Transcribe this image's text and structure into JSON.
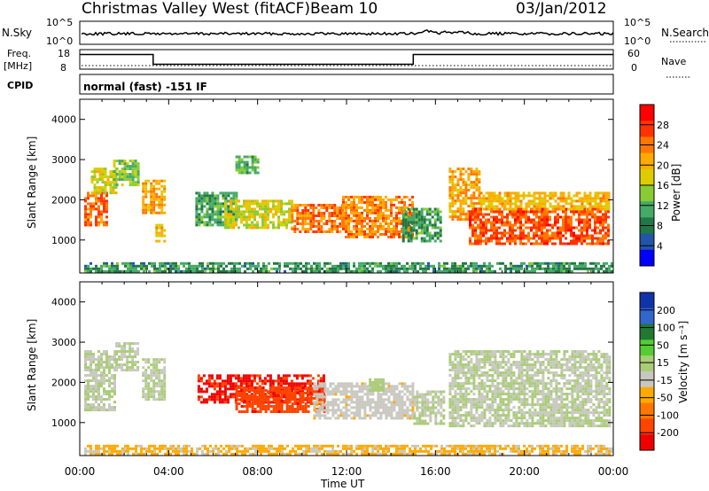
{
  "header": {
    "station": "Christmas Valley West (fitACF)",
    "beam": "Beam 10",
    "date": "03/Jan/2012"
  },
  "panels": {
    "nsky": {
      "label": "N.Sky",
      "tick_top": "10^5",
      "tick_bottom": "10^0"
    },
    "nsearch": {
      "label": "N.Search",
      "tick_top": "10^5",
      "tick_bottom": "10^0"
    },
    "freq": {
      "label": "Freq.",
      "unit": "[MHz]",
      "tick_top": "18",
      "tick_bottom": "8"
    },
    "nave": {
      "label": "Nave",
      "tick_top": "60",
      "tick_bottom": "0"
    },
    "cpid": {
      "label": "CPID",
      "mode": "normal (fast) -151 IF"
    }
  },
  "colorbars": {
    "power": {
      "label": "Power [dB]",
      "ticks": [
        "28",
        "24",
        "20",
        "16",
        "12",
        "8",
        "4"
      ],
      "colors": [
        "#ff0000",
        "#ff3300",
        "#ff7700",
        "#ffaa00",
        "#ddcc00",
        "#88cc33",
        "#44aa66",
        "#227744",
        "#2255aa",
        "#0000ff"
      ]
    },
    "velocity": {
      "label": "Velocity [m s⁻¹]",
      "ticks": [
        "200",
        "100",
        "50",
        "15",
        "-15",
        "-50",
        "-100",
        "-200"
      ],
      "colors": [
        "#1133aa",
        "#3366cc",
        "#227733",
        "#55cc33",
        "#aacc77",
        "#c8c8c0",
        "#ffaa00",
        "#ff7700",
        "#ff4400",
        "#ee0000"
      ]
    }
  },
  "chart_data": {
    "type": "heatmap",
    "xlabel": "Time UT",
    "ylabel": "Slant Range [km]",
    "x_ticks": [
      "00:00",
      "04:00",
      "08:00",
      "12:00",
      "16:00",
      "20:00",
      "00:00"
    ],
    "xlim_hours": [
      0,
      24
    ],
    "ylim_km": [
      180,
      4500
    ],
    "y_ticks": [
      "1000",
      "2000",
      "3000",
      "4000"
    ],
    "freq_mhz": [
      {
        "start": 0,
        "end": 3.3,
        "value": 15.5
      },
      {
        "start": 3.3,
        "end": 15.0,
        "value": 10.5
      },
      {
        "start": 15.0,
        "end": 24,
        "value": 15.5
      }
    ],
    "power_blobs": [
      {
        "t": [
          0.2,
          1.2
        ],
        "r": [
          1400,
          2200
        ],
        "v": 26
      },
      {
        "t": [
          0.5,
          1.6
        ],
        "r": [
          2200,
          2800
        ],
        "v": 18
      },
      {
        "t": [
          1.5,
          2.6
        ],
        "r": [
          2400,
          3000
        ],
        "v": 14
      },
      {
        "t": [
          2.8,
          3.8
        ],
        "r": [
          1700,
          2500
        ],
        "v": 22
      },
      {
        "t": [
          3.4,
          3.8
        ],
        "r": [
          1000,
          1400
        ],
        "v": 20
      },
      {
        "t": [
          5.2,
          7.0
        ],
        "r": [
          1400,
          2200
        ],
        "v": 10
      },
      {
        "t": [
          6.5,
          9.5
        ],
        "r": [
          1300,
          2000
        ],
        "v": 17
      },
      {
        "t": [
          9.5,
          11.8
        ],
        "r": [
          1200,
          1900
        ],
        "v": 25
      },
      {
        "t": [
          11.8,
          15.0
        ],
        "r": [
          1100,
          2100
        ],
        "v": 24
      },
      {
        "t": [
          14.5,
          16.2
        ],
        "r": [
          1000,
          1800
        ],
        "v": 10
      },
      {
        "t": [
          16.6,
          18.0
        ],
        "r": [
          1500,
          2800
        ],
        "v": 22
      },
      {
        "t": [
          17.5,
          23.8
        ],
        "r": [
          900,
          1800
        ],
        "v": 27
      },
      {
        "t": [
          18.0,
          23.8
        ],
        "r": [
          1800,
          2200
        ],
        "v": 20
      },
      {
        "t": [
          0.2,
          24
        ],
        "r": [
          200,
          450
        ],
        "v": 9
      },
      {
        "t": [
          7.0,
          8.0
        ],
        "r": [
          2700,
          3100
        ],
        "v": 12
      }
    ],
    "velocity_blobs": [
      {
        "t": [
          0.2,
          1.6
        ],
        "r": [
          1300,
          2800
        ],
        "v": 0
      },
      {
        "t": [
          1.6,
          2.6
        ],
        "r": [
          2300,
          3000
        ],
        "v": 0
      },
      {
        "t": [
          2.8,
          3.8
        ],
        "r": [
          1600,
          2600
        ],
        "v": 0
      },
      {
        "t": [
          5.3,
          11.0
        ],
        "r": [
          1500,
          2200
        ],
        "v": -220
      },
      {
        "t": [
          7.0,
          11.0
        ],
        "r": [
          1300,
          1900
        ],
        "v": -200
      },
      {
        "t": [
          10.5,
          15.0
        ],
        "r": [
          1100,
          2000
        ],
        "v": -40
      },
      {
        "t": [
          13.0,
          13.6
        ],
        "r": [
          1800,
          2100
        ],
        "v": 40
      },
      {
        "t": [
          15.0,
          16.4
        ],
        "r": [
          1000,
          1800
        ],
        "v": 0
      },
      {
        "t": [
          16.6,
          23.8
        ],
        "r": [
          900,
          2800
        ],
        "v": 0
      },
      {
        "t": [
          0.2,
          24
        ],
        "r": [
          200,
          450
        ],
        "v": -60
      }
    ]
  }
}
